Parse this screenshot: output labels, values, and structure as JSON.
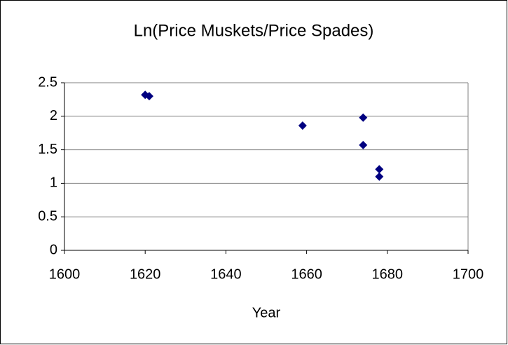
{
  "chart_data": {
    "type": "scatter",
    "title": "Ln(Price Muskets/Price Spades)",
    "x_label": "Year",
    "series": [
      {
        "color": "#000080",
        "x": [
          1620,
          1621,
          1659,
          1674,
          1674,
          1678,
          1678
        ],
        "values": [
          2.32,
          2.3,
          1.86,
          1.98,
          1.57,
          1.21,
          1.1
        ]
      }
    ],
    "xlim": [
      1600,
      1700
    ],
    "xticks": [
      1600,
      1620,
      1640,
      1660,
      1680,
      1700
    ],
    "ylim": [
      0,
      2.5
    ],
    "yticks": [
      0,
      0.5,
      1,
      1.5,
      2,
      2.5
    ],
    "grid": true
  }
}
